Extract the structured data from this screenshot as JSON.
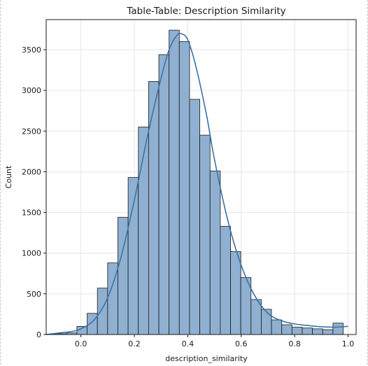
{
  "chart_data": {
    "type": "bar",
    "title": "Table-Table: Description Similarity",
    "xlabel": "description_similarity",
    "ylabel": "Count",
    "xlim": [
      -0.13,
      1.03
    ],
    "ylim": [
      0,
      3870
    ],
    "grid": true,
    "x_ticks": [
      0.0,
      0.2,
      0.4,
      0.6,
      0.8,
      1.0
    ],
    "x_tick_labels": [
      "0.0",
      "0.2",
      "0.4",
      "0.6",
      "0.8",
      "1.0"
    ],
    "y_ticks": [
      0,
      500,
      1000,
      1500,
      2000,
      2500,
      3000,
      3500
    ],
    "y_tick_labels": [
      "0",
      "500",
      "1000",
      "1500",
      "2000",
      "2500",
      "3000",
      "3500"
    ],
    "bin_edges": [
      -0.13,
      -0.0917,
      -0.0533,
      -0.015,
      0.0233,
      0.0617,
      0.1,
      0.1383,
      0.1767,
      0.215,
      0.2533,
      0.2917,
      0.33,
      0.3683,
      0.4067,
      0.445,
      0.4833,
      0.5217,
      0.56,
      0.5983,
      0.6367,
      0.675,
      0.7133,
      0.7517,
      0.79,
      0.8283,
      0.8667,
      0.905,
      0.9433,
      0.9817,
      1.02
    ],
    "values": [
      5,
      10,
      20,
      100,
      260,
      570,
      880,
      1440,
      1930,
      2550,
      3110,
      3440,
      3740,
      3600,
      2890,
      2450,
      2010,
      1330,
      1020,
      700,
      430,
      310,
      180,
      120,
      90,
      80,
      70,
      60,
      140,
      0
    ],
    "kde": {
      "x": [
        -0.13,
        -0.08,
        -0.03,
        0.0,
        0.05,
        0.1,
        0.15,
        0.2,
        0.25,
        0.3,
        0.33,
        0.36,
        0.38,
        0.4,
        0.43,
        0.47,
        0.5,
        0.55,
        0.6,
        0.65,
        0.7,
        0.75,
        0.8,
        0.85,
        0.9,
        0.95,
        0.98,
        1.0
      ],
      "y": [
        0,
        20,
        40,
        70,
        180,
        450,
        950,
        1650,
        2450,
        3150,
        3500,
        3680,
        3690,
        3620,
        3300,
        2700,
        2150,
        1400,
        850,
        480,
        260,
        170,
        130,
        110,
        95,
        90,
        95,
        100
      ]
    },
    "colors": {
      "bar_fill": "#8fb0d0",
      "bar_edge": "#1b1b1b",
      "kde_line": "#3a73a8",
      "grid": "#e6e6e6"
    }
  }
}
